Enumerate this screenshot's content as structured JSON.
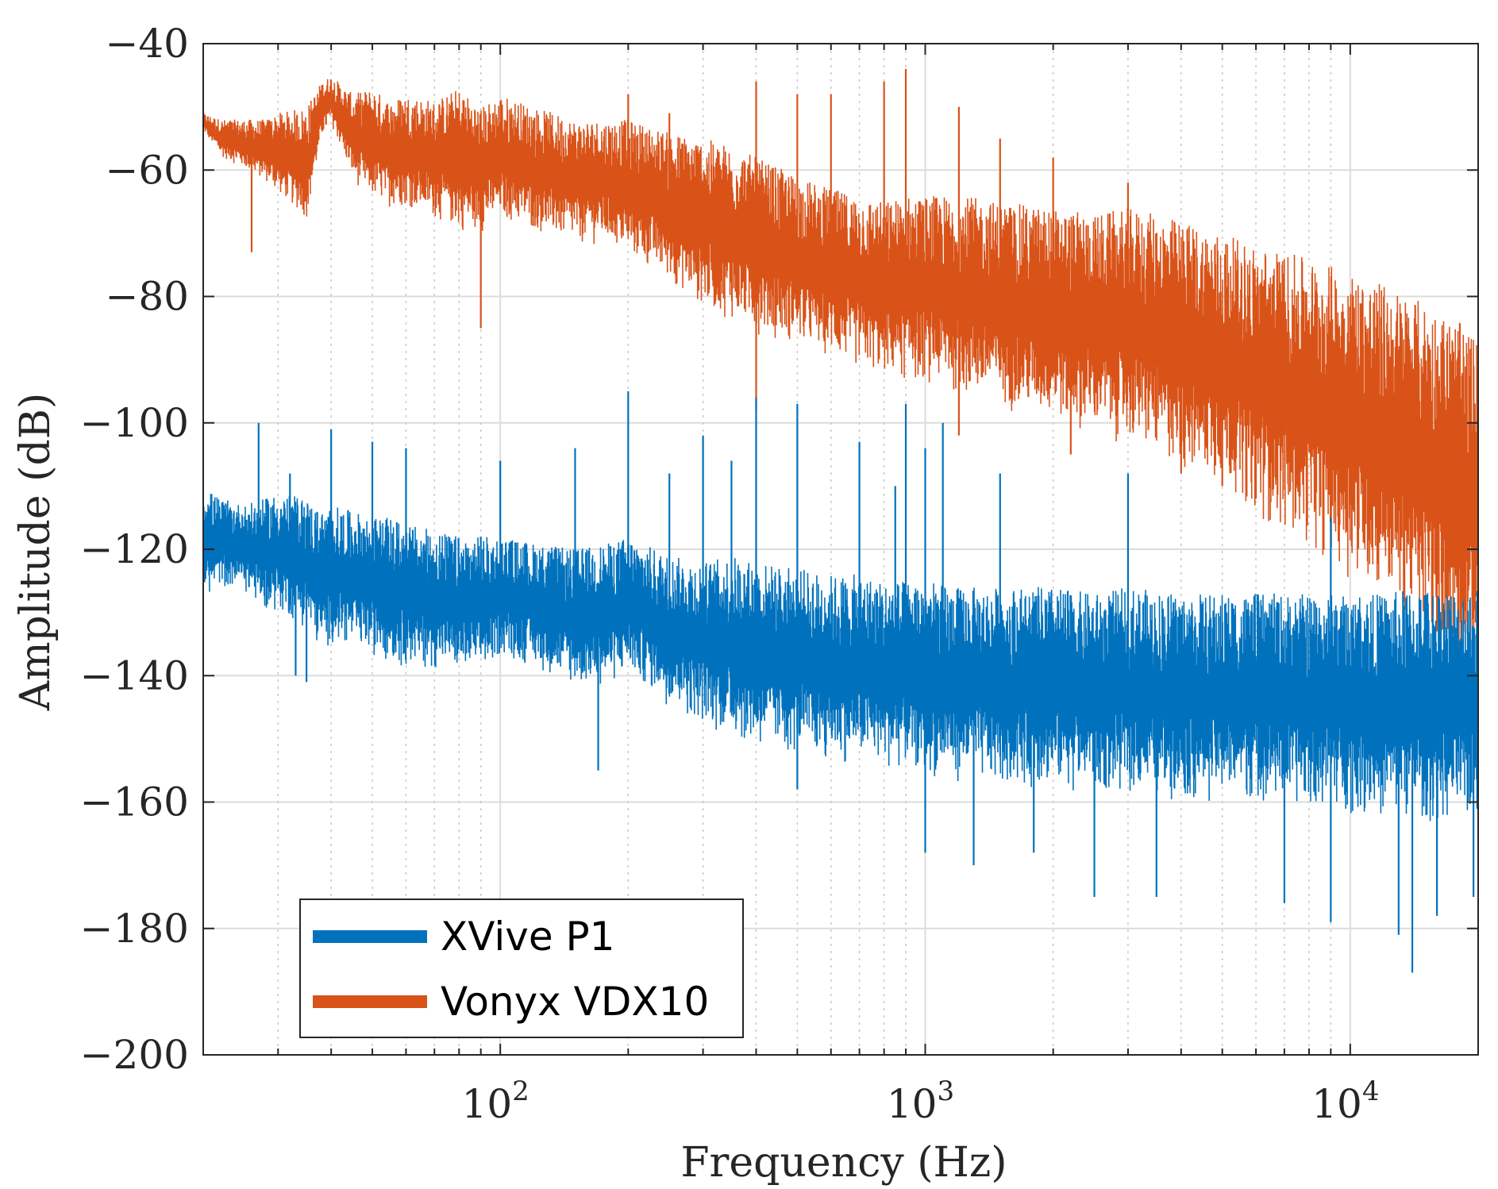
{
  "chart_data": {
    "type": "line",
    "xscale": "log",
    "xlabel": "Frequency (Hz)",
    "ylabel": "Amplitude (dB)",
    "xlim": [
      20,
      20000
    ],
    "ylim": [
      -200,
      -40
    ],
    "grid": true,
    "x_ticks": [
      {
        "value": 100,
        "base": "10",
        "exp": "2"
      },
      {
        "value": 1000,
        "base": "10",
        "exp": "3"
      },
      {
        "value": 10000,
        "base": "10",
        "exp": "4"
      }
    ],
    "y_ticks": [
      {
        "value": -40,
        "label": "−40"
      },
      {
        "value": -60,
        "label": "−60"
      },
      {
        "value": -80,
        "label": "−80"
      },
      {
        "value": -100,
        "label": "−100"
      },
      {
        "value": -120,
        "label": "−120"
      },
      {
        "value": -140,
        "label": "−140"
      },
      {
        "value": -160,
        "label": "−160"
      },
      {
        "value": -180,
        "label": "−180"
      },
      {
        "value": -200,
        "label": "−200"
      }
    ],
    "legend": {
      "position": "bottom-left"
    },
    "series": [
      {
        "name": "XVive P1",
        "color": "#0072BD",
        "x": [
          20,
          22,
          25,
          28,
          30,
          35,
          38,
          40,
          45,
          50,
          55,
          60,
          70,
          80,
          90,
          100,
          120,
          150,
          180,
          200,
          250,
          300,
          350,
          400,
          500,
          600,
          700,
          800,
          900,
          1000,
          1200,
          1500,
          2000,
          2500,
          3000,
          4000,
          5000,
          6000,
          7000,
          8000,
          10000,
          12000,
          14000,
          16000,
          18000,
          20000
        ],
        "upper": [
          -110,
          -112,
          -113,
          -112,
          -111,
          -112,
          -114,
          -113,
          -114,
          -115,
          -115,
          -116,
          -117,
          -118,
          -118,
          -118,
          -119,
          -120,
          -119,
          -118,
          -121,
          -122,
          -121,
          -122,
          -123,
          -124,
          -124,
          -125,
          -125,
          -125,
          -126,
          -126,
          -126,
          -127,
          -126,
          -127,
          -127,
          -127,
          -127,
          -127,
          -127,
          -127,
          -126,
          -126,
          -126,
          -126
        ],
        "lower": [
          -128,
          -126,
          -127,
          -130,
          -130,
          -133,
          -137,
          -135,
          -136,
          -137,
          -138,
          -139,
          -139,
          -140,
          -140,
          -137,
          -139,
          -142,
          -142,
          -140,
          -145,
          -148,
          -150,
          -152,
          -153,
          -154,
          -154,
          -155,
          -155,
          -156,
          -157,
          -158,
          -158,
          -159,
          -159,
          -160,
          -160,
          -160,
          -161,
          -161,
          -162,
          -163,
          -163,
          -164,
          -164,
          -164
        ],
        "spikes": [
          [
            27,
            -100
          ],
          [
            32,
            -108
          ],
          [
            40,
            -101
          ],
          [
            50,
            -103
          ],
          [
            60,
            -104
          ],
          [
            100,
            -106
          ],
          [
            150,
            -104
          ],
          [
            200,
            -95
          ],
          [
            250,
            -108
          ],
          [
            300,
            -102
          ],
          [
            350,
            -106
          ],
          [
            400,
            -96
          ],
          [
            500,
            -97
          ],
          [
            700,
            -103
          ],
          [
            850,
            -110
          ],
          [
            900,
            -97
          ],
          [
            1000,
            -104
          ],
          [
            1100,
            -100
          ],
          [
            1500,
            -108
          ],
          [
            3000,
            -108
          ],
          [
            9000,
            -115
          ],
          [
            28,
            -120
          ],
          [
            33,
            -140
          ],
          [
            35,
            -141
          ],
          [
            90,
            -118
          ],
          [
            170,
            -155
          ],
          [
            500,
            -158
          ],
          [
            1000,
            -168
          ],
          [
            1300,
            -170
          ],
          [
            1800,
            -168
          ],
          [
            2500,
            -175
          ],
          [
            3500,
            -175
          ],
          [
            7000,
            -176
          ],
          [
            9000,
            -179
          ],
          [
            13000,
            -181
          ],
          [
            14000,
            -187
          ],
          [
            16000,
            -178
          ],
          [
            19500,
            -175
          ]
        ]
      },
      {
        "name": "Vonyx VDX10",
        "color": "#D95319",
        "x": [
          20,
          22,
          25,
          28,
          30,
          35,
          38,
          40,
          45,
          50,
          55,
          60,
          70,
          80,
          90,
          100,
          120,
          150,
          180,
          200,
          250,
          300,
          350,
          400,
          500,
          600,
          700,
          800,
          900,
          1000,
          1200,
          1500,
          2000,
          2500,
          3000,
          3500,
          4000,
          5000,
          6000,
          7000,
          8000,
          10000,
          12000,
          14000,
          16000,
          18000,
          20000
        ],
        "upper": [
          -51,
          -52,
          -52,
          -52,
          -51,
          -50,
          -46,
          -45,
          -48,
          -47,
          -49,
          -48,
          -49,
          -47,
          -50,
          -48,
          -50,
          -52,
          -52,
          -52,
          -54,
          -55,
          -56,
          -58,
          -61,
          -63,
          -64,
          -65,
          -64,
          -64,
          -64,
          -65,
          -66,
          -67,
          -66,
          -67,
          -68,
          -70,
          -72,
          -73,
          -74,
          -76,
          -78,
          -80,
          -82,
          -84,
          -87
        ],
        "lower": [
          -54,
          -58,
          -60,
          -62,
          -64,
          -68,
          -55,
          -53,
          -62,
          -65,
          -66,
          -66,
          -68,
          -70,
          -70,
          -68,
          -70,
          -72,
          -72,
          -74,
          -78,
          -82,
          -84,
          -86,
          -88,
          -90,
          -92,
          -93,
          -94,
          -94,
          -96,
          -98,
          -100,
          -102,
          -104,
          -106,
          -108,
          -110,
          -115,
          -118,
          -120,
          -125,
          -128,
          -132,
          -135,
          -138,
          -140
        ],
        "spikes": [
          [
            26,
            -73
          ],
          [
            90,
            -85
          ],
          [
            120,
            -65
          ],
          [
            200,
            -48
          ],
          [
            250,
            -51
          ],
          [
            400,
            -46
          ],
          [
            500,
            -48
          ],
          [
            600,
            -48
          ],
          [
            800,
            -46
          ],
          [
            900,
            -44
          ],
          [
            1200,
            -50
          ],
          [
            1500,
            -55
          ],
          [
            2000,
            -58
          ],
          [
            3000,
            -62
          ],
          [
            2500,
            -97
          ],
          [
            3500,
            -100
          ],
          [
            4000,
            -108
          ],
          [
            5000,
            -110
          ],
          [
            6000,
            -112
          ],
          [
            400,
            -98
          ],
          [
            1200,
            -102
          ],
          [
            2200,
            -105
          ],
          [
            16000,
            -133
          ],
          [
            18000,
            -136
          ]
        ]
      }
    ]
  }
}
